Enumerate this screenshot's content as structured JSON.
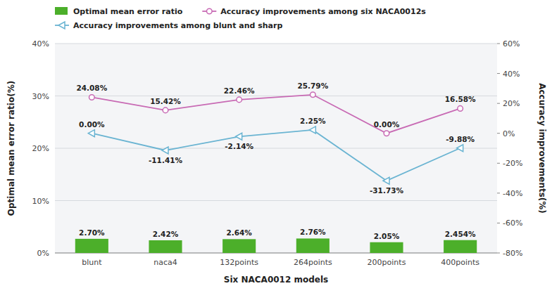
{
  "chart_data": {
    "type": "bar",
    "categories": [
      "blunt",
      "naca4",
      "132points",
      "264points",
      "200points",
      "400points"
    ],
    "xlabel": "Six NACA0012 models",
    "ylabel": "Optimal mean error ratio(%)",
    "y2label": "Accuracy improvements(%)",
    "ylim": [
      0,
      40
    ],
    "yticks": [
      {
        "value": 0,
        "label": "0%"
      },
      {
        "value": 10,
        "label": "10%"
      },
      {
        "value": 20,
        "label": "20%"
      },
      {
        "value": 30,
        "label": "30%"
      },
      {
        "value": 40,
        "label": "40%"
      }
    ],
    "y2lim": [
      -80,
      60
    ],
    "y2ticks": [
      {
        "value": -80,
        "label": "-80%"
      },
      {
        "value": -60,
        "label": "-60%"
      },
      {
        "value": -40,
        "label": "-40%"
      },
      {
        "value": -20,
        "label": "-20%"
      },
      {
        "value": 0,
        "label": "0%"
      },
      {
        "value": 20,
        "label": "20%"
      },
      {
        "value": 40,
        "label": "40%"
      },
      {
        "value": 60,
        "label": "60%"
      }
    ],
    "grid": true,
    "legend": "upper left",
    "data_labels": true,
    "series": [
      {
        "name": "Optimal mean error ratio",
        "type": "bar",
        "color": "#4caf2a",
        "values": [
          2.7,
          2.42,
          2.64,
          2.76,
          2.05,
          2.454
        ],
        "value_labels": [
          "2.70%",
          "2.42%",
          "2.64%",
          "2.76%",
          "2.05%",
          "2.454%"
        ]
      },
      {
        "name": "Accuracy improvements among six NACA0012s",
        "type": "line",
        "axis": "y2",
        "color": "#c86ab4",
        "marker": "circle",
        "values": [
          24.08,
          15.42,
          22.46,
          25.79,
          0.0,
          16.58
        ],
        "value_labels": [
          "24.08%",
          "15.42%",
          "22.46%",
          "25.79%",
          "0.00%",
          "16.58%"
        ]
      },
      {
        "name": "Accuracy improvements among blunt and sharp",
        "type": "line",
        "axis": "y2",
        "color": "#6ab4d2",
        "marker": "triangle-left",
        "values": [
          0.0,
          -11.41,
          -2.14,
          2.25,
          -31.73,
          -9.88
        ],
        "value_labels": [
          "0.00%",
          "-11.41%",
          "-2.14%",
          "2.25%",
          "-31.73%",
          "-9.88%"
        ]
      }
    ]
  }
}
